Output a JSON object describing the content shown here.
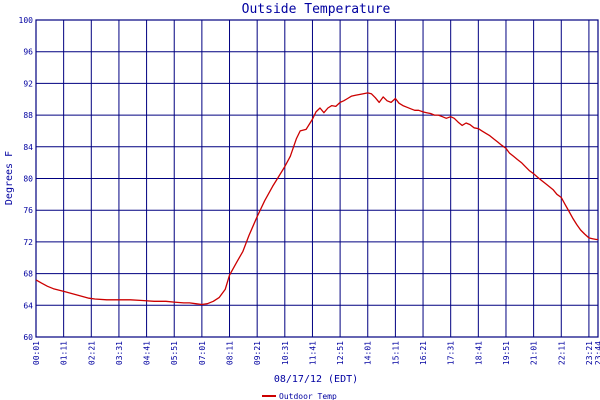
{
  "chart_data": {
    "type": "line",
    "title": "Outside Temperature",
    "xlabel": "08/17/12 (EDT)",
    "ylabel": "Degrees F",
    "ylim": [
      60,
      100
    ],
    "y_ticks": [
      60,
      64,
      68,
      72,
      76,
      80,
      84,
      88,
      92,
      96,
      100
    ],
    "x_ticks": [
      "00:01",
      "01:11",
      "02:21",
      "03:31",
      "04:41",
      "05:51",
      "07:01",
      "08:11",
      "09:21",
      "10:31",
      "11:41",
      "12:51",
      "14:01",
      "15:11",
      "16:21",
      "17:31",
      "18:41",
      "19:51",
      "21:01",
      "22:11",
      "23:21",
      "23:44"
    ],
    "grid": true,
    "legend_position": "bottom-left",
    "line_color": "#cc0000",
    "grid_color": "#000080",
    "series": [
      {
        "name": "Outdoor Temp",
        "x": [
          "00:01",
          "00:15",
          "00:30",
          "00:45",
          "01:00",
          "01:15",
          "01:30",
          "01:45",
          "02:00",
          "02:15",
          "02:30",
          "03:00",
          "03:30",
          "04:00",
          "04:30",
          "05:00",
          "05:30",
          "05:51",
          "06:15",
          "06:30",
          "06:45",
          "07:01",
          "07:15",
          "07:30",
          "07:45",
          "08:00",
          "08:11",
          "08:30",
          "08:45",
          "09:00",
          "09:21",
          "09:40",
          "10:00",
          "10:15",
          "10:31",
          "10:45",
          "11:00",
          "11:10",
          "11:25",
          "11:41",
          "11:50",
          "12:00",
          "12:10",
          "12:20",
          "12:30",
          "12:40",
          "12:51",
          "13:00",
          "13:10",
          "13:20",
          "13:30",
          "13:40",
          "13:50",
          "14:01",
          "14:10",
          "14:20",
          "14:30",
          "14:40",
          "14:50",
          "15:00",
          "15:11",
          "15:20",
          "15:30",
          "15:40",
          "15:50",
          "16:00",
          "16:10",
          "16:21",
          "16:30",
          "16:40",
          "16:50",
          "17:00",
          "17:10",
          "17:20",
          "17:31",
          "17:40",
          "17:50",
          "18:00",
          "18:10",
          "18:20",
          "18:30",
          "18:41",
          "18:50",
          "19:00",
          "19:10",
          "19:20",
          "19:30",
          "19:40",
          "19:51",
          "20:00",
          "20:10",
          "20:20",
          "20:30",
          "20:40",
          "20:50",
          "21:01",
          "21:10",
          "21:20",
          "21:30",
          "21:40",
          "21:50",
          "22:00",
          "22:11",
          "22:20",
          "22:30",
          "22:40",
          "22:50",
          "23:00",
          "23:10",
          "23:21",
          "23:30",
          "23:40",
          "23:44"
        ],
        "y": [
          67.2,
          66.8,
          66.4,
          66.1,
          65.9,
          65.7,
          65.5,
          65.3,
          65.1,
          64.9,
          64.8,
          64.7,
          64.7,
          64.7,
          64.6,
          64.5,
          64.5,
          64.4,
          64.3,
          64.3,
          64.2,
          64.1,
          64.2,
          64.5,
          65.0,
          66.0,
          67.8,
          69.5,
          70.8,
          72.8,
          75.2,
          77.2,
          79.0,
          80.2,
          81.5,
          82.8,
          85.0,
          86.0,
          86.2,
          87.5,
          88.4,
          88.9,
          88.3,
          88.9,
          89.2,
          89.1,
          89.6,
          89.8,
          90.1,
          90.4,
          90.5,
          90.6,
          90.7,
          90.8,
          90.7,
          90.2,
          89.6,
          90.3,
          89.8,
          89.6,
          90.1,
          89.5,
          89.2,
          89.0,
          88.8,
          88.6,
          88.6,
          88.4,
          88.3,
          88.2,
          88.0,
          88.0,
          87.8,
          87.6,
          87.8,
          87.6,
          87.1,
          86.7,
          87.0,
          86.8,
          86.4,
          86.3,
          86.0,
          85.7,
          85.4,
          85.0,
          84.6,
          84.2,
          83.8,
          83.2,
          82.8,
          82.4,
          82.0,
          81.5,
          81.0,
          80.6,
          80.2,
          79.8,
          79.4,
          79.0,
          78.6,
          78.0,
          77.6,
          76.8,
          75.9,
          75.0,
          74.2,
          73.5,
          73.0,
          72.5,
          72.4,
          72.3,
          72.3
        ]
      }
    ]
  }
}
